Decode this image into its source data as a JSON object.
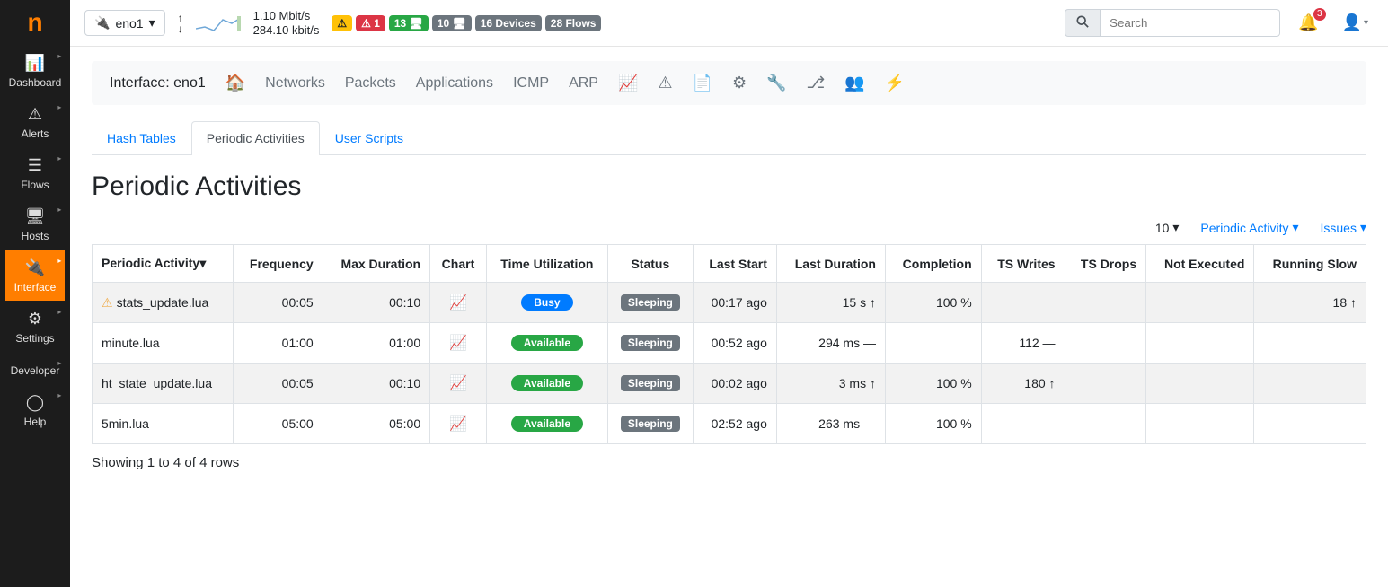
{
  "sidebar": {
    "logo": "n",
    "items": [
      {
        "icon": "📊",
        "label": "Dashboard"
      },
      {
        "icon": "⚠",
        "label": "Alerts"
      },
      {
        "icon": "☰",
        "label": "Flows"
      },
      {
        "icon": "🖥",
        "label": "Hosts"
      },
      {
        "icon": "🔌",
        "label": "Interface"
      },
      {
        "icon": "⚙",
        "label": "Settings"
      },
      {
        "icon": "</>",
        "label": "Developer"
      },
      {
        "icon": "◯",
        "label": "Help"
      }
    ]
  },
  "topbar": {
    "interface": "eno1",
    "up_rate": "1.10 Mbit/s",
    "down_rate": "284.10 kbit/s",
    "badges": [
      {
        "cls": "b-warn",
        "text": "⚠"
      },
      {
        "cls": "b-danger",
        "text": "⚠ 1"
      },
      {
        "cls": "b-green",
        "text": "13 🖥"
      },
      {
        "cls": "b-gray",
        "text": "10 🖥"
      },
      {
        "cls": "b-gray",
        "text": "16 Devices"
      },
      {
        "cls": "b-gray",
        "text": "28 Flows"
      }
    ],
    "search_placeholder": "Search",
    "bell_count": "3"
  },
  "iface_bar": {
    "label": "Interface: eno1",
    "links": [
      "Networks",
      "Packets",
      "Applications",
      "ICMP",
      "ARP"
    ]
  },
  "tabs": {
    "t0": "Hash Tables",
    "t1": "Periodic Activities",
    "t2": "User Scripts"
  },
  "page_title": "Periodic Activities",
  "toolbar": {
    "page_size": "10",
    "filter1": "Periodic Activity",
    "filter2": "Issues"
  },
  "table": {
    "headers": {
      "activity": "Periodic Activity",
      "frequency": "Frequency",
      "max_duration": "Max Duration",
      "chart": "Chart",
      "time_util": "Time Utilization",
      "status": "Status",
      "last_start": "Last Start",
      "last_duration": "Last Duration",
      "completion": "Completion",
      "ts_writes": "TS Writes",
      "ts_drops": "TS Drops",
      "not_executed": "Not Executed",
      "running_slow": "Running Slow"
    },
    "rows": [
      {
        "warn": true,
        "name": "stats_update.lua",
        "freq": "00:05",
        "maxd": "00:10",
        "util_cls": "pill-busy",
        "util": "Busy",
        "status": "Sleeping",
        "last_start": "00:17 ago",
        "last_dur": "15 s ↑",
        "completion": "100 %",
        "ts_writes": "",
        "ts_drops": "",
        "not_exec": "",
        "slow": "18 ↑"
      },
      {
        "warn": false,
        "name": "minute.lua",
        "freq": "01:00",
        "maxd": "01:00",
        "util_cls": "pill-avail",
        "util": "Available",
        "status": "Sleeping",
        "last_start": "00:52 ago",
        "last_dur": "294 ms —",
        "completion": "",
        "ts_writes": "112 —",
        "ts_drops": "",
        "not_exec": "",
        "slow": ""
      },
      {
        "warn": false,
        "name": "ht_state_update.lua",
        "freq": "00:05",
        "maxd": "00:10",
        "util_cls": "pill-avail",
        "util": "Available",
        "status": "Sleeping",
        "last_start": "00:02 ago",
        "last_dur": "3 ms ↑",
        "completion": "100 %",
        "ts_writes": "180 ↑",
        "ts_drops": "",
        "not_exec": "",
        "slow": ""
      },
      {
        "warn": false,
        "name": "5min.lua",
        "freq": "05:00",
        "maxd": "05:00",
        "util_cls": "pill-avail",
        "util": "Available",
        "status": "Sleeping",
        "last_start": "02:52 ago",
        "last_dur": "263 ms —",
        "completion": "100 %",
        "ts_writes": "",
        "ts_drops": "",
        "not_exec": "",
        "slow": ""
      }
    ],
    "footer": "Showing 1 to 4 of 4 rows"
  }
}
